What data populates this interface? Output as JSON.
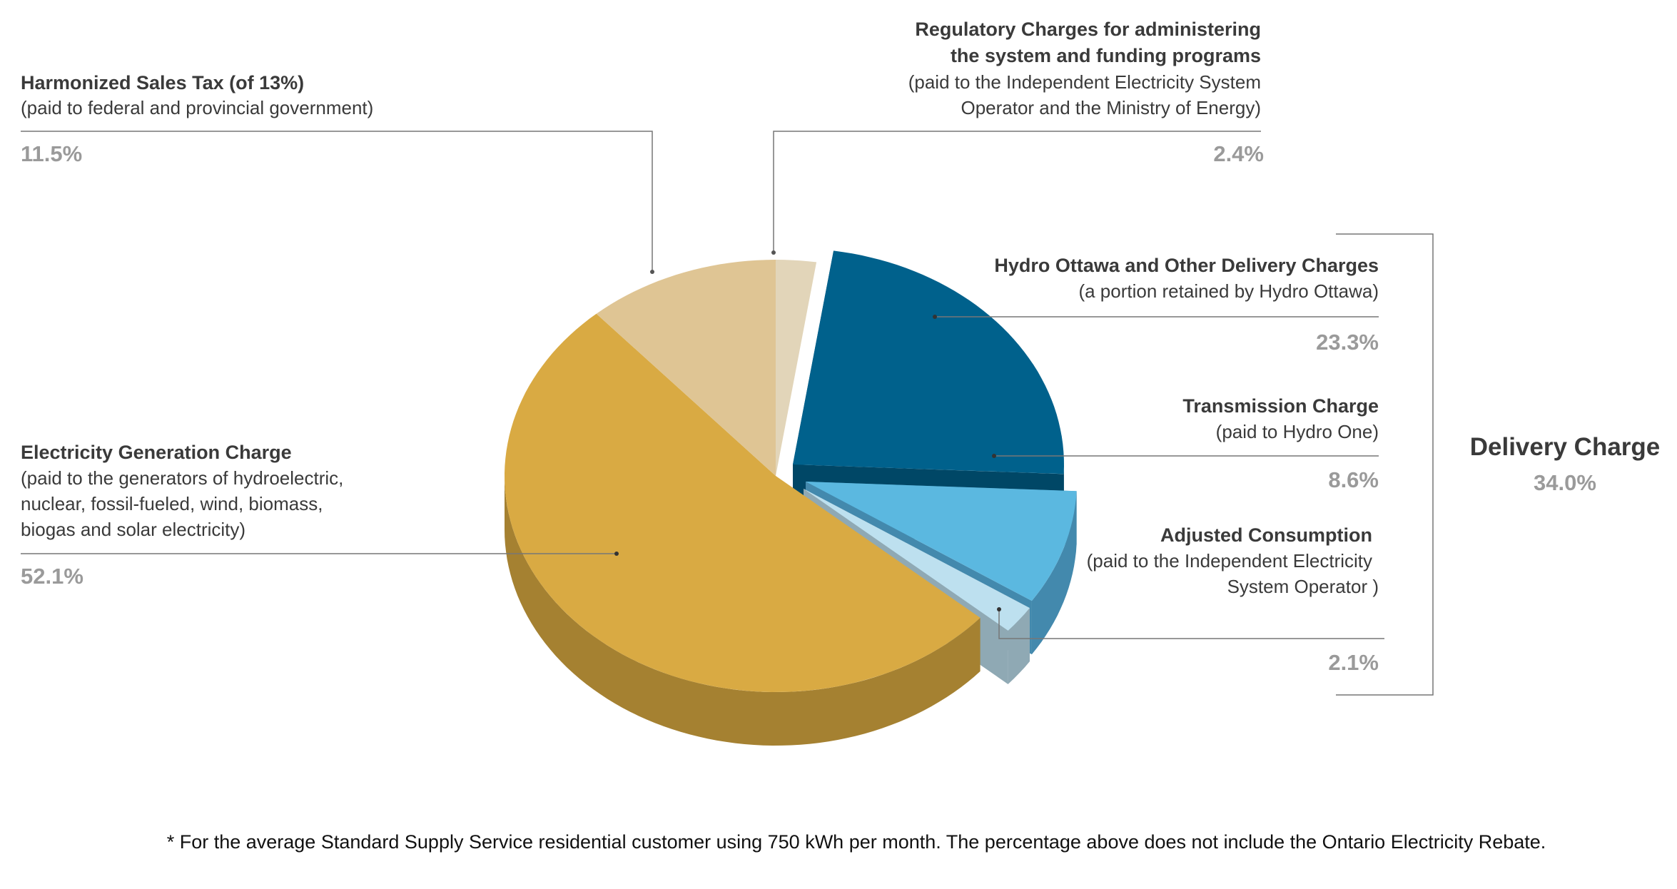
{
  "chart_data": {
    "type": "pie",
    "style": "3d-exploded",
    "slices": [
      {
        "id": "regulatory",
        "title": "Regulatory Charges for administering the system and funding programs",
        "title_lines": [
          "Regulatory Charges for administering",
          "the system and funding programs"
        ],
        "sub_lines": [
          "(paid to the Independent Electricity System",
          "Operator and the Ministry of Energy)"
        ],
        "value": 2.4,
        "label": "2.4%",
        "color": "#e2d5b9",
        "side": "#c7b897",
        "exploded": false
      },
      {
        "id": "hydro-ottawa",
        "title_lines": [
          "Hydro Ottawa and Other Delivery Charges"
        ],
        "sub_lines": [
          "(a portion retained by Hydro Ottawa)"
        ],
        "value": 23.3,
        "label": "23.3%",
        "color": "#00618c",
        "side": "#004766",
        "exploded": true
      },
      {
        "id": "transmission",
        "title_lines": [
          "Transmission Charge"
        ],
        "sub_lines": [
          "(paid to Hydro One)"
        ],
        "value": 8.6,
        "label": "8.6%",
        "color": "#5bb8e0",
        "side": "#4389ad",
        "exploded": true
      },
      {
        "id": "adjusted-consumption",
        "title_lines": [
          "Adjusted Consumption"
        ],
        "sub_lines": [
          "(paid to the Independent Electricity",
          "System Operator )"
        ],
        "value": 2.1,
        "label": "2.1%",
        "color": "#bde0ef",
        "side": "#8fa9b4",
        "exploded": true
      },
      {
        "id": "generation",
        "title_lines": [
          "Electricity Generation Charge"
        ],
        "sub_lines": [
          "(paid to the generators of hydroelectric,",
          "nuclear, fossil-fueled, wind, biomass,",
          "biogas and solar electricity)"
        ],
        "value": 52.1,
        "label": "52.1%",
        "color": "#d9aa43",
        "side": "#a58131",
        "exploded": false
      },
      {
        "id": "hst",
        "title_lines": [
          "Harmonized Sales Tax (of 13%)"
        ],
        "sub_lines": [
          "(paid to federal and provincial government)"
        ],
        "value": 11.5,
        "label": "11.5%",
        "color": "#dfc594",
        "side": "#bfa675",
        "exploded": false
      }
    ],
    "group": {
      "title": "Delivery Charge",
      "value": 34.0,
      "label": "34.0%",
      "members": [
        "hydro-ottawa",
        "transmission",
        "adjusted-consumption"
      ]
    },
    "footnote": "* For the average Standard Supply Service residential customer using 750 kWh per month. The percentage above does not include the Ontario Electricity Rebate."
  }
}
